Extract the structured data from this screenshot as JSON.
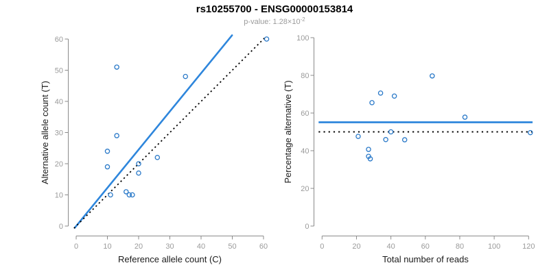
{
  "header": {
    "title": "rs10255700 - ENSG00000153814",
    "pvalue_prefix": "p-value: 1.28×10",
    "pvalue_exponent": "-2"
  },
  "colors": {
    "accent_line": "#2E86DC",
    "point_stroke": "#2878C8",
    "dotted_line": "#000000",
    "axis": "#8a8a8a",
    "tick_label": "#9a9a9a",
    "axis_title": "#1a1a1a",
    "title": "#000000",
    "subtitle": "#9b9b9b",
    "background": "#ffffff"
  },
  "chart_data": [
    {
      "type": "scatter",
      "panel": "allele-counts",
      "xlabel": "Reference allele count (C)",
      "ylabel": "Alternative allele count (T)",
      "xlim": [
        0,
        62
      ],
      "ylim": [
        0,
        62
      ],
      "xticks": [
        0,
        10,
        20,
        30,
        40,
        50,
        60
      ],
      "yticks": [
        0,
        10,
        20,
        30,
        40,
        50,
        60
      ],
      "grid": false,
      "legend": "none",
      "points": [
        [
          61,
          60
        ],
        [
          13,
          51
        ],
        [
          35,
          48
        ],
        [
          13,
          29
        ],
        [
          10,
          24
        ],
        [
          10,
          19
        ],
        [
          20,
          20
        ],
        [
          26,
          22
        ],
        [
          20,
          17
        ],
        [
          16,
          11
        ],
        [
          11,
          10
        ],
        [
          17,
          10
        ],
        [
          18,
          10
        ]
      ],
      "fit_line": {
        "slope": 1.226,
        "intercept": 0,
        "style": "solid",
        "color_key": "accent_line"
      },
      "identity_line": {
        "slope": 1,
        "intercept": 0,
        "style": "dotted",
        "color_key": "dotted_line"
      }
    },
    {
      "type": "scatter",
      "panel": "percentage-alternative",
      "xlabel": "Total number of reads",
      "ylabel": "Percentage alternative (T)",
      "xlim": [
        0,
        122
      ],
      "ylim": [
        0,
        100
      ],
      "xticks": [
        0,
        20,
        40,
        60,
        80,
        100,
        120
      ],
      "yticks": [
        0,
        20,
        40,
        60,
        80,
        100
      ],
      "grid": false,
      "legend": "none",
      "points": [
        [
          121,
          49.6
        ],
        [
          64,
          79.7
        ],
        [
          83,
          57.8
        ],
        [
          42,
          69.0
        ],
        [
          34,
          70.6
        ],
        [
          29,
          65.5
        ],
        [
          40,
          50.0
        ],
        [
          48,
          45.8
        ],
        [
          37,
          45.9
        ],
        [
          27,
          40.7
        ],
        [
          21,
          47.6
        ],
        [
          27,
          37.0
        ],
        [
          28,
          35.7
        ]
      ],
      "mean_line": {
        "value": 55.1,
        "style": "solid",
        "color_key": "accent_line"
      },
      "null_line": {
        "value": 50,
        "style": "dotted",
        "color_key": "dotted_line"
      }
    }
  ]
}
